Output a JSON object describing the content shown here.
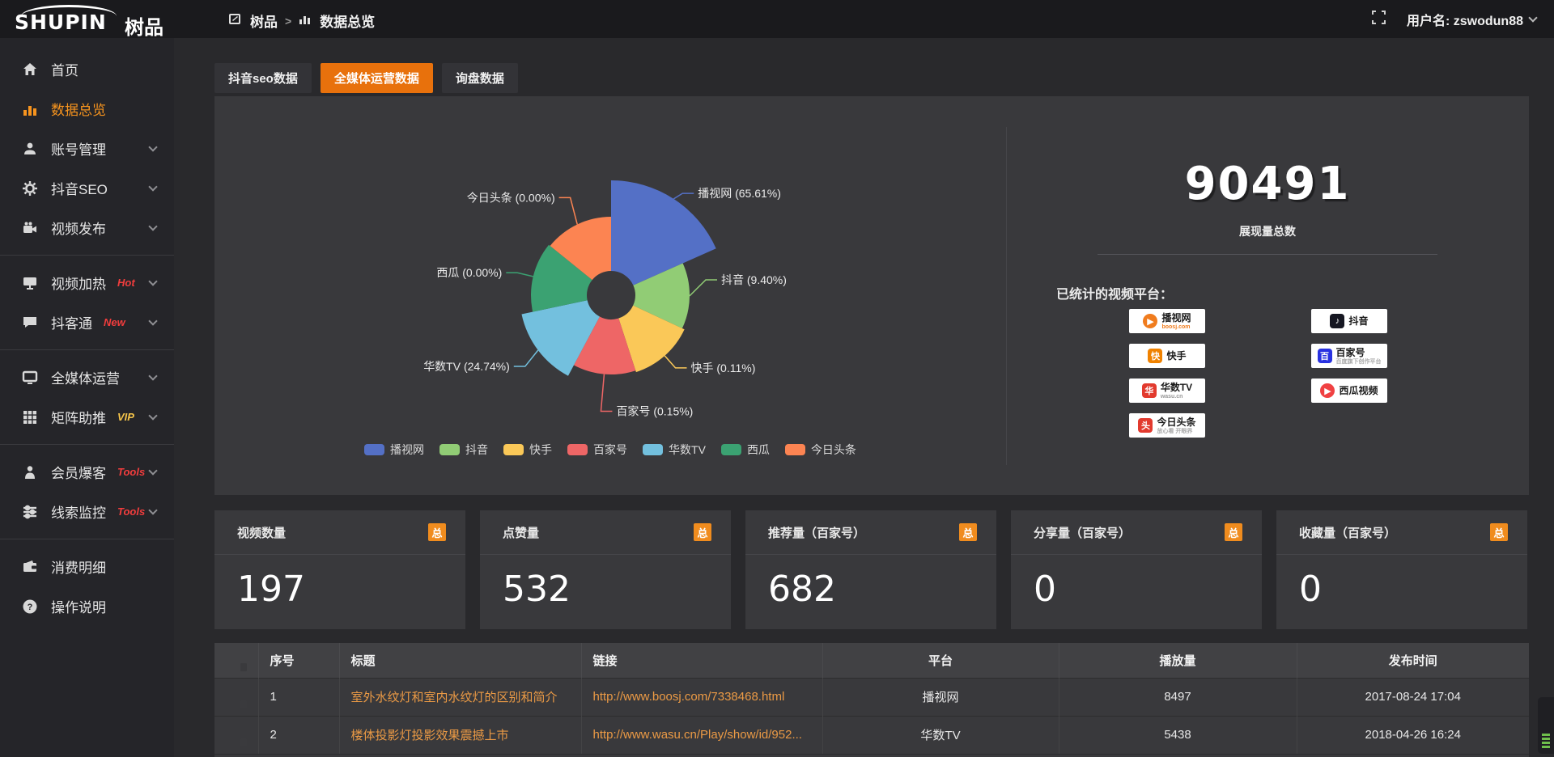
{
  "brand": {
    "logo_primary": "SHUPIN",
    "logo_secondary": "树品"
  },
  "header": {
    "breadcrumb_root": "树品",
    "breadcrumb_sep": ">",
    "breadcrumb_current": "数据总览",
    "username": "用户名: zswodun88"
  },
  "sidebar": {
    "items": [
      {
        "id": "home",
        "label": "首页",
        "icon": "home-icon"
      },
      {
        "id": "data-overview",
        "label": "数据总览",
        "icon": "bar-chart-icon",
        "active": true
      },
      {
        "id": "account-manage",
        "label": "账号管理",
        "icon": "user-icon",
        "chevron": true
      },
      {
        "id": "douyin-seo",
        "label": "抖音SEO",
        "icon": "gear-icon",
        "chevron": true
      },
      {
        "id": "video-publish",
        "label": "视频发布",
        "icon": "publish-icon",
        "chevron": true
      },
      {
        "type": "divider"
      },
      {
        "id": "video-heat",
        "label": "视频加热",
        "icon": "screen-play-icon",
        "badge": "Hot",
        "badge_color": "#f23d3d",
        "chevron": true
      },
      {
        "id": "douketong",
        "label": "抖客通",
        "icon": "chat-icon",
        "badge": "New",
        "badge_color": "#f23d3d",
        "chevron": true
      },
      {
        "type": "divider"
      },
      {
        "id": "media-operation",
        "label": "全媒体运营",
        "icon": "monitor-icon",
        "chevron": true
      },
      {
        "id": "matrix-boost",
        "label": "矩阵助推",
        "icon": "grid-icon",
        "badge": "VIP",
        "badge_color": "#f6c54a",
        "chevron": true
      },
      {
        "type": "divider"
      },
      {
        "id": "member-baoke",
        "label": "会员爆客",
        "icon": "person-icon",
        "badge": "Tools",
        "badge_color": "#f23d3d",
        "chevron": true
      },
      {
        "id": "clue-monitor",
        "label": "线索监控",
        "icon": "sliders-icon",
        "badge": "Tools",
        "badge_color": "#f23d3d",
        "chevron": true
      },
      {
        "type": "divider"
      },
      {
        "id": "consume-detail",
        "label": "消费明细",
        "icon": "wallet-icon"
      },
      {
        "id": "help",
        "label": "操作说明",
        "icon": "help-icon"
      }
    ]
  },
  "tabs": [
    {
      "label": "抖音seo数据",
      "active": false
    },
    {
      "label": "全媒体运营数据",
      "active": true
    },
    {
      "label": "询盘数据",
      "active": false
    }
  ],
  "chart_data": {
    "type": "pie",
    "variant": "nightingale-rose",
    "center": [
      490,
      246
    ],
    "inner_radius": 30,
    "legend_position": "bottom",
    "slices": [
      {
        "name": "播视网",
        "percent": 65.61,
        "label": "播视网 (65.61%)",
        "color": "#5470c6",
        "start_deg": 0,
        "end_deg": 66,
        "radius": 142,
        "label_dy": 10
      },
      {
        "name": "抖音",
        "percent": 9.4,
        "label": "抖音 (9.40%)",
        "color": "#91cc75",
        "start_deg": 66,
        "end_deg": 115,
        "radius": 97,
        "label_dy": -20
      },
      {
        "name": "快手",
        "percent": 0.11,
        "label": "快手 (0.11%)",
        "color": "#fac858",
        "start_deg": 115,
        "end_deg": 162,
        "radius": 100,
        "label_dy": 0
      },
      {
        "name": "百家号",
        "percent": 0.15,
        "label": "百家号 (0.15%)",
        "color": "#ee6666",
        "start_deg": 162,
        "end_deg": 208,
        "radius": 98,
        "label_dy": 0,
        "label_side": "right",
        "leader_len": 46
      },
      {
        "name": "华数TV",
        "percent": 24.74,
        "label": "华数TV (24.74%)",
        "color": "#73c0de",
        "start_deg": 208,
        "end_deg": 258,
        "radius": 113,
        "label_dy": 8
      },
      {
        "name": "西瓜",
        "percent": 0.0,
        "label": "西瓜 (0.00%)",
        "color": "#3ba272",
        "start_deg": 258,
        "end_deg": 309,
        "radius": 99,
        "label_dy": 0
      },
      {
        "name": "今日头条",
        "percent": 0.0,
        "label": "今日头条 (0.00%)",
        "color": "#fc8452",
        "start_deg": 309,
        "end_deg": 360,
        "radius": 97,
        "label_dy": -15
      }
    ],
    "legend": [
      "播视网",
      "抖音",
      "快手",
      "百家号",
      "华数TV",
      "西瓜",
      "今日头条"
    ]
  },
  "summary": {
    "total": "90491",
    "total_label": "展现量总数",
    "platforms_label": "已统计的视频平台：",
    "platforms_left": [
      {
        "name": "播视网",
        "sub": "boosj.com",
        "sub_color": "#f07c1e",
        "icon_bg": "#f07c1e",
        "icon_glyph": "▶",
        "icon_round": true
      },
      {
        "name": "快手",
        "sub": "",
        "icon_bg": "#f08200",
        "icon_glyph": "快"
      },
      {
        "name": "华数TV",
        "sub": "wasu.cn",
        "sub_color": "#999999",
        "icon_bg": "#e23a2e",
        "icon_glyph": "华"
      },
      {
        "name": "今日头条",
        "sub": "放心看 开眼界",
        "sub_color": "#aaaaaa",
        "icon_bg": "#e23a2e",
        "icon_glyph": "头"
      }
    ],
    "platforms_right": [
      {
        "name": "抖音",
        "sub": "",
        "icon_bg": "#161722",
        "icon_glyph": "♪"
      },
      {
        "name": "百家号",
        "sub": "百度旗下创作平台",
        "sub_color": "#aaaaaa",
        "icon_bg": "#2932e1",
        "icon_glyph": "百"
      },
      {
        "name": "西瓜视频",
        "sub": "",
        "icon_bg": "#f04142",
        "icon_glyph": "▶",
        "icon_round": true
      }
    ]
  },
  "stat_cards": [
    {
      "title": "视频数量",
      "badge": "总",
      "value": "197"
    },
    {
      "title": "点赞量",
      "badge": "总",
      "value": "532"
    },
    {
      "title": "推荐量（百家号）",
      "badge": "总",
      "value": "682"
    },
    {
      "title": "分享量（百家号）",
      "badge": "总",
      "value": "0"
    },
    {
      "title": "收藏量（百家号）",
      "badge": "总",
      "value": "0"
    }
  ],
  "table": {
    "headers": [
      "序号",
      "标题",
      "链接",
      "平台",
      "播放量",
      "发布时间"
    ],
    "rows": [
      {
        "index": "1",
        "title": "室外水纹灯和室内水纹灯的区别和简介",
        "link": "http://www.boosj.com/7338468.html",
        "platform": "播视网",
        "views": "8497",
        "time": "2017-08-24 17:04"
      },
      {
        "index": "2",
        "title": "楼体投影灯投影效果震撼上市",
        "link": "http://www.wasu.cn/Play/show/id/952...",
        "platform": "华数TV",
        "views": "5438",
        "time": "2018-04-26 16:24"
      }
    ]
  },
  "colors": {
    "accent_orange": "#e8710c",
    "sidebar_active": "#f7941e",
    "link_orange": "#eb9a45",
    "badge_orange": "#f08c1e"
  }
}
